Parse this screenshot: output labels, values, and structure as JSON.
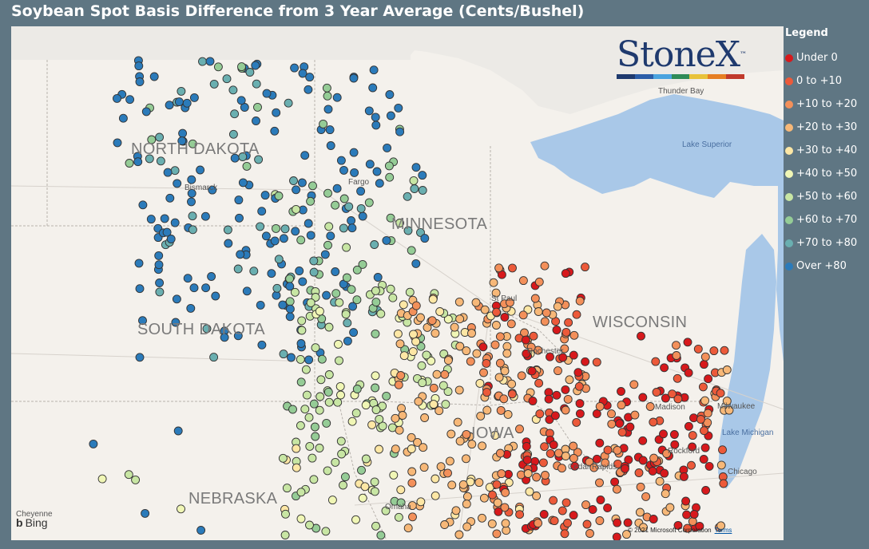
{
  "title": "Soybean Spot Basis Difference from 3 Year Average (Cents/Bushel)",
  "legend": {
    "title": "Legend",
    "items": [
      {
        "label": "Under 0",
        "color": "#d7191c"
      },
      {
        "label": "0 to +10",
        "color": "#ec5a3a"
      },
      {
        "label": "+10 to +20",
        "color": "#f3905a"
      },
      {
        "label": "+20 to +30",
        "color": "#f7b878"
      },
      {
        "label": "+30 to +40",
        "color": "#fde7a5"
      },
      {
        "label": "+40 to +50",
        "color": "#f0f6b5"
      },
      {
        "label": "+50 to +60",
        "color": "#c8e6a4"
      },
      {
        "label": "+60 to +70",
        "color": "#95cc96"
      },
      {
        "label": "+70 to +80",
        "color": "#6aafb0"
      },
      {
        "label": "Over +80",
        "color": "#2b7bba"
      }
    ]
  },
  "map": {
    "state_labels": [
      "NORTH DAKOTA",
      "SOUTH DAKOTA",
      "MINNESOTA",
      "WISCONSIN",
      "IOWA",
      "NEBRASKA"
    ],
    "city_labels": [
      "Bismarck",
      "Fargo",
      "St Paul",
      "Rochester",
      "Madison",
      "Milwaukee",
      "Rockford",
      "Chicago",
      "Cedar Rapids",
      "Omaha",
      "Thunder Bay",
      "Cheyenne"
    ],
    "water_labels": [
      "Lake Superior",
      "Lake Michigan"
    ],
    "attribution": {
      "brand": "Bing",
      "copyright": "© 2021 Microsoft Corporation",
      "terms_link": "Terms"
    }
  },
  "logo": {
    "text": "StoneX",
    "mark": "™",
    "bar_colors": [
      "#1f3a6e",
      "#2a5da8",
      "#4aa3df",
      "#2e8b57",
      "#e8c23a",
      "#e67e22",
      "#c0392b"
    ]
  }
}
